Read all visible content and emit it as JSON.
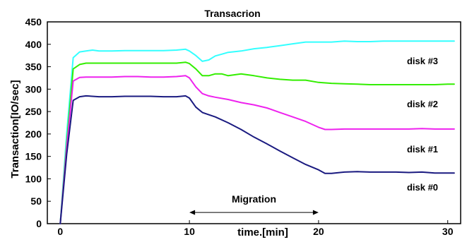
{
  "chart_data": {
    "type": "line",
    "title": "Transacrion",
    "xlabel": "time.[min]",
    "ylabel": "Transaction[IO/sec]",
    "xlim": [
      -1,
      31
    ],
    "ylim": [
      0,
      450
    ],
    "xticks": [
      0,
      10,
      20,
      30
    ],
    "yticks": [
      0,
      50,
      100,
      150,
      200,
      250,
      300,
      350,
      400,
      450
    ],
    "grid": false,
    "series": [
      {
        "name": "disk #3",
        "color": "#33ffff",
        "x": [
          0,
          0.5,
          1,
          1.5,
          2,
          2.5,
          3,
          4,
          5,
          6,
          7,
          8,
          9,
          9.7,
          10,
          10.5,
          11,
          11.5,
          12,
          12.5,
          13,
          14,
          15,
          16,
          17,
          18,
          19,
          20,
          21,
          22,
          23,
          24,
          25,
          26,
          27,
          28,
          29,
          30,
          30.5
        ],
        "y": [
          0,
          200,
          370,
          383,
          385,
          387,
          385,
          385,
          386,
          386,
          386,
          386,
          387,
          389,
          385,
          375,
          362,
          365,
          374,
          378,
          382,
          385,
          390,
          393,
          397,
          401,
          405,
          405,
          405,
          407,
          406,
          406,
          407,
          407,
          407,
          407,
          407,
          407,
          407
        ]
      },
      {
        "name": "disk #2",
        "color": "#33ee00",
        "x": [
          0,
          0.5,
          1,
          1.5,
          2,
          3,
          4,
          5,
          6,
          7,
          8,
          9,
          9.7,
          10,
          10.5,
          11,
          11.5,
          12,
          12.5,
          13,
          14,
          15,
          16,
          17,
          18,
          19,
          20,
          21,
          22,
          23,
          24,
          25,
          26,
          27,
          28,
          29,
          30,
          30.5
        ],
        "y": [
          0,
          180,
          345,
          355,
          358,
          358,
          358,
          358,
          358,
          358,
          358,
          358,
          360,
          357,
          345,
          330,
          330,
          334,
          334,
          330,
          334,
          330,
          325,
          322,
          320,
          320,
          315,
          313,
          312,
          311,
          310,
          310,
          310,
          310,
          310,
          310,
          311,
          311
        ]
      },
      {
        "name": "disk #1",
        "color": "#ee22ee",
        "x": [
          0,
          0.5,
          1,
          1.5,
          2,
          3,
          4,
          5,
          6,
          7,
          8,
          9,
          9.7,
          10,
          10.5,
          11,
          11.5,
          12,
          13,
          14,
          15,
          16,
          17,
          18,
          19,
          20,
          20.5,
          21,
          22,
          23,
          24,
          25,
          26,
          27,
          28,
          29,
          30,
          30.5
        ],
        "y": [
          0,
          170,
          318,
          326,
          327,
          327,
          327,
          328,
          328,
          327,
          327,
          328,
          330,
          325,
          305,
          290,
          285,
          282,
          277,
          270,
          265,
          258,
          248,
          238,
          228,
          215,
          210,
          210,
          211,
          211,
          211,
          211,
          211,
          211,
          212,
          211,
          211,
          211
        ]
      },
      {
        "name": "disk #0",
        "color": "#1a1a80",
        "x": [
          0,
          0.5,
          1,
          1.5,
          2,
          3,
          4,
          5,
          6,
          7,
          8,
          9,
          9.7,
          10,
          10.5,
          11,
          11.5,
          12,
          13,
          14,
          15,
          16,
          17,
          18,
          19,
          20,
          20.5,
          21,
          22,
          23,
          24,
          25,
          26,
          27,
          28,
          29,
          30,
          30.5
        ],
        "y": [
          0,
          155,
          275,
          283,
          285,
          283,
          283,
          284,
          284,
          284,
          283,
          283,
          285,
          280,
          260,
          248,
          243,
          238,
          225,
          210,
          193,
          178,
          162,
          147,
          132,
          120,
          112,
          112,
          115,
          116,
          115,
          115,
          115,
          114,
          115,
          113,
          113,
          113
        ]
      }
    ],
    "annotations": [
      {
        "text": "Migration",
        "x_start": 10,
        "x_end": 20,
        "y": 25
      }
    ]
  }
}
